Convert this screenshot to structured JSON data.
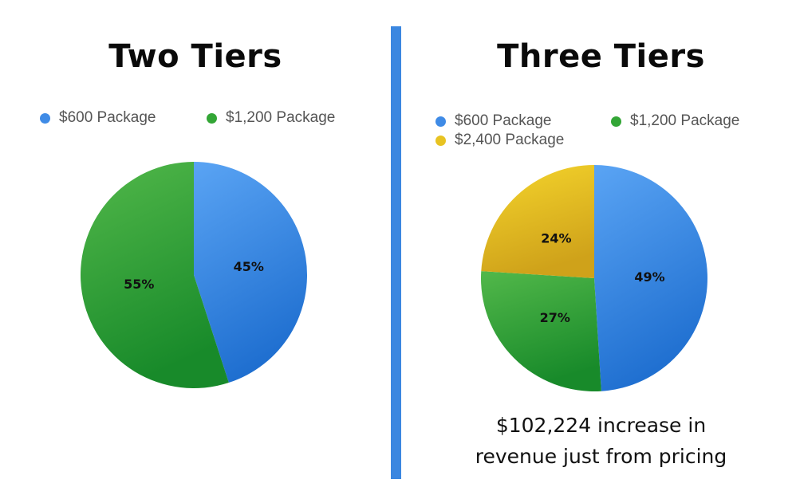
{
  "colors": {
    "blue": "#3f8be6",
    "green": "#33a636",
    "yellow": "#e8c322",
    "divider": "#3b87e0"
  },
  "chart_data": [
    {
      "type": "pie",
      "title": "Two Tiers",
      "legend": [
        "$600 Package",
        "$1,200 Package"
      ],
      "categories": [
        "$600 Package",
        "$1,200 Package"
      ],
      "values": [
        45,
        55
      ],
      "labels": [
        "45%",
        "55%"
      ],
      "colors": [
        "#3f8be6",
        "#33a636"
      ],
      "legend_position": "top"
    },
    {
      "type": "pie",
      "title": "Three Tiers",
      "legend": [
        "$600 Package",
        "$1,200 Package",
        "$2,400 Package"
      ],
      "categories": [
        "$600 Package",
        "$1,200 Package",
        "$2,400 Package"
      ],
      "values": [
        49,
        27,
        24
      ],
      "labels": [
        "49%",
        "27%",
        "24%"
      ],
      "colors": [
        "#3f8be6",
        "#33a636",
        "#e8c322"
      ],
      "legend_position": "top"
    }
  ],
  "note": {
    "line1": "$102,224 increase in",
    "line2": "revenue just from pricing"
  }
}
